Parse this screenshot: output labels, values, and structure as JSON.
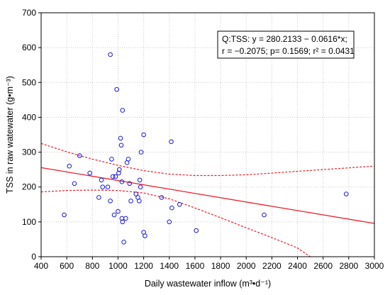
{
  "chart_data": {
    "type": "scatter",
    "xlabel": "Daily wastewater inflow (m³•d⁻¹)",
    "ylabel": "TSS in raw watewater (g•m⁻³)",
    "xlim": [
      400,
      3000
    ],
    "ylim": [
      0,
      700
    ],
    "xticks": [
      400,
      600,
      800,
      1000,
      1200,
      1400,
      1600,
      1800,
      2000,
      2200,
      2400,
      2600,
      2800,
      3000
    ],
    "yticks": [
      0,
      100,
      200,
      300,
      400,
      500,
      600,
      700
    ],
    "grid": true,
    "legend_position": "top-right",
    "annotation": {
      "line1": "Q:TSS:   y = 280.2133 − 0.0616*x;",
      "line2": "r = −0.2075; p= 0.1569; r² = 0.0431"
    },
    "regression": {
      "intercept": 280.2133,
      "slope": -0.0616
    },
    "confidence_band": {
      "upper": [
        [
          400,
          325
        ],
        [
          600,
          301
        ],
        [
          800,
          280
        ],
        [
          1000,
          262
        ],
        [
          1200,
          247
        ],
        [
          1400,
          237
        ],
        [
          1600,
          233
        ],
        [
          1800,
          233
        ],
        [
          2000,
          235
        ],
        [
          2200,
          240
        ],
        [
          2400,
          245
        ],
        [
          2600,
          250
        ],
        [
          2800,
          255
        ],
        [
          3000,
          260
        ]
      ],
      "lower": [
        [
          400,
          186
        ],
        [
          600,
          190
        ],
        [
          800,
          191
        ],
        [
          1000,
          190
        ],
        [
          1200,
          183
        ],
        [
          1400,
          166
        ],
        [
          1600,
          140
        ],
        [
          1800,
          112
        ],
        [
          2000,
          83
        ],
        [
          2200,
          55
        ],
        [
          2400,
          25
        ],
        [
          2500,
          0
        ]
      ]
    },
    "points": [
      {
        "x": 580,
        "y": 120
      },
      {
        "x": 620,
        "y": 260
      },
      {
        "x": 660,
        "y": 210
      },
      {
        "x": 700,
        "y": 290
      },
      {
        "x": 780,
        "y": 240
      },
      {
        "x": 850,
        "y": 170
      },
      {
        "x": 870,
        "y": 220
      },
      {
        "x": 880,
        "y": 200
      },
      {
        "x": 920,
        "y": 200
      },
      {
        "x": 940,
        "y": 580
      },
      {
        "x": 940,
        "y": 160
      },
      {
        "x": 950,
        "y": 280
      },
      {
        "x": 960,
        "y": 230
      },
      {
        "x": 970,
        "y": 120
      },
      {
        "x": 980,
        "y": 230
      },
      {
        "x": 990,
        "y": 480
      },
      {
        "x": 1000,
        "y": 130
      },
      {
        "x": 1005,
        "y": 240
      },
      {
        "x": 1010,
        "y": 250
      },
      {
        "x": 1020,
        "y": 340
      },
      {
        "x": 1025,
        "y": 320
      },
      {
        "x": 1030,
        "y": 215
      },
      {
        "x": 1030,
        "y": 110
      },
      {
        "x": 1035,
        "y": 100
      },
      {
        "x": 1035,
        "y": 420
      },
      {
        "x": 1045,
        "y": 42
      },
      {
        "x": 1060,
        "y": 110
      },
      {
        "x": 1070,
        "y": 270
      },
      {
        "x": 1080,
        "y": 280
      },
      {
        "x": 1090,
        "y": 210
      },
      {
        "x": 1100,
        "y": 160
      },
      {
        "x": 1140,
        "y": 180
      },
      {
        "x": 1155,
        "y": 170
      },
      {
        "x": 1165,
        "y": 160
      },
      {
        "x": 1170,
        "y": 220
      },
      {
        "x": 1175,
        "y": 200
      },
      {
        "x": 1180,
        "y": 300
      },
      {
        "x": 1200,
        "y": 350
      },
      {
        "x": 1200,
        "y": 70
      },
      {
        "x": 1210,
        "y": 60
      },
      {
        "x": 1340,
        "y": 170
      },
      {
        "x": 1400,
        "y": 100
      },
      {
        "x": 1415,
        "y": 330
      },
      {
        "x": 1420,
        "y": 140
      },
      {
        "x": 1480,
        "y": 150
      },
      {
        "x": 1610,
        "y": 75
      },
      {
        "x": 2140,
        "y": 120
      },
      {
        "x": 2780,
        "y": 180
      }
    ]
  }
}
